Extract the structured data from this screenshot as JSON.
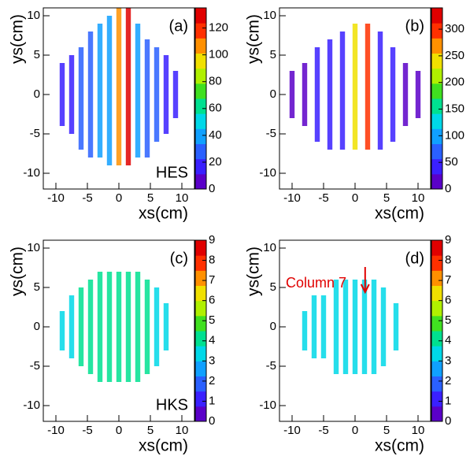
{
  "chart_data": [
    {
      "type": "heatmap",
      "panel_label": "(a)",
      "tag": "HES",
      "xlabel": "xs(cm)",
      "ylabel": "ys(cm)",
      "xlim": [
        -12,
        12
      ],
      "ylim": [
        -12,
        11
      ],
      "xticks": [
        -10,
        -5,
        0,
        5,
        10
      ],
      "yticks": [
        -10,
        -5,
        0,
        5,
        10
      ],
      "zlim": [
        0,
        135
      ],
      "zticks": [
        0,
        20,
        40,
        60,
        80,
        100,
        120
      ],
      "x": [
        -9,
        -7.5,
        -6,
        -4.5,
        -3,
        -1.5,
        0,
        1.5,
        3,
        4.5,
        6,
        7.5,
        9
      ],
      "ylow": [
        -4,
        -5,
        -7,
        -8,
        -8,
        -9,
        -9,
        -9,
        -8,
        -8,
        -6,
        -5,
        -3
      ],
      "yhigh": [
        4,
        5,
        6,
        8,
        9,
        10,
        11,
        11,
        9,
        7,
        6,
        5,
        3
      ],
      "values": [
        15,
        20,
        25,
        30,
        35,
        40,
        110,
        130,
        40,
        30,
        25,
        20,
        15
      ]
    },
    {
      "type": "heatmap",
      "panel_label": "(b)",
      "xlabel": "xs(cm)",
      "ylabel": "ys(cm)",
      "xlim": [
        -12,
        12
      ],
      "ylim": [
        -12,
        11
      ],
      "xticks": [
        -10,
        -5,
        0,
        5,
        10
      ],
      "yticks": [
        -10,
        -5,
        0,
        5,
        10
      ],
      "zlim": [
        0,
        340
      ],
      "zticks": [
        0,
        50,
        100,
        150,
        200,
        250,
        300
      ],
      "x": [
        -10,
        -8,
        -6,
        -4,
        -2,
        0,
        2,
        4,
        6,
        8,
        10
      ],
      "ylow": [
        -3,
        -4,
        -6,
        -7,
        -7,
        -7,
        -7,
        -7,
        -6,
        -4,
        -3
      ],
      "yhigh": [
        3,
        4,
        6,
        7,
        8,
        9,
        9,
        8,
        6,
        4,
        3
      ],
      "values": [
        20,
        25,
        30,
        35,
        40,
        250,
        300,
        40,
        30,
        25,
        20
      ]
    },
    {
      "type": "heatmap",
      "panel_label": "(c)",
      "tag": "HKS",
      "xlabel": "xs(cm)",
      "ylabel": "ys(cm)",
      "xlim": [
        -12,
        12
      ],
      "ylim": [
        -12,
        11
      ],
      "xticks": [
        -10,
        -5,
        0,
        5,
        10
      ],
      "yticks": [
        -10,
        -5,
        0,
        5,
        10
      ],
      "zlim": [
        0,
        9
      ],
      "zticks": [
        0,
        1,
        2,
        3,
        4,
        5,
        6,
        7,
        8,
        9
      ],
      "x": [
        -9,
        -7.5,
        -6,
        -4.5,
        -3,
        -1.5,
        0,
        1.5,
        3,
        4.5,
        6,
        7.5
      ],
      "ylow": [
        -3,
        -4,
        -5,
        -6,
        -7,
        -7,
        -7,
        -7,
        -7,
        -6,
        -5,
        -3
      ],
      "yhigh": [
        2,
        4,
        5,
        6,
        7,
        7,
        7,
        7,
        7,
        6,
        5,
        3
      ],
      "values": [
        3,
        3,
        4,
        4,
        4,
        4,
        4,
        4,
        4,
        4,
        3,
        3
      ]
    },
    {
      "type": "heatmap",
      "panel_label": "(d)",
      "annotation": "Column 7",
      "xlabel": "xs(cm)",
      "ylabel": "ys(cm)",
      "xlim": [
        -12,
        12
      ],
      "ylim": [
        -12,
        11
      ],
      "xticks": [
        -10,
        -5,
        0,
        5,
        10
      ],
      "yticks": [
        -10,
        -5,
        0,
        5,
        10
      ],
      "zlim": [
        0,
        9
      ],
      "zticks": [
        0,
        1,
        2,
        3,
        4,
        5,
        6,
        7,
        8,
        9
      ],
      "x": [
        -8,
        -6.5,
        -5,
        -3,
        -1.5,
        0,
        1.5,
        3,
        4.5,
        6.5
      ],
      "ylow": [
        -3,
        -4,
        -4,
        -6,
        -6,
        -6,
        -6,
        -6,
        -5,
        -3
      ],
      "yhigh": [
        2,
        4,
        4,
        6,
        6,
        6,
        6,
        6,
        5,
        3
      ],
      "values": [
        3,
        3,
        3,
        3,
        3,
        3,
        3,
        3,
        3,
        3
      ]
    }
  ]
}
